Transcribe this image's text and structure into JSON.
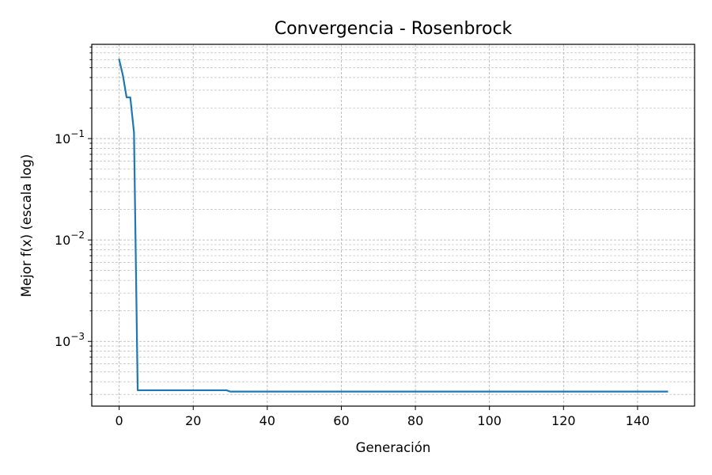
{
  "chart_data": {
    "type": "line",
    "title": "Convergencia - Rosenbrock",
    "xlabel": "Generación",
    "ylabel": "Mejor f(x) (escala log)",
    "yscale": "log",
    "grid": true,
    "grid_minor": true,
    "xlim": [
      -7.4,
      155.4
    ],
    "ylim": [
      0.00023,
      0.85
    ],
    "x_ticks": [
      0,
      20,
      40,
      60,
      80,
      100,
      120,
      140
    ],
    "y_ticks": [
      {
        "value": 0.1,
        "base": "10",
        "exp": "−1"
      },
      {
        "value": 0.01,
        "base": "10",
        "exp": "−2"
      },
      {
        "value": 0.001,
        "base": "10",
        "exp": "−3"
      }
    ],
    "colors": {
      "line": "#1f77b4",
      "grid": "#b0b0b0"
    },
    "series": [
      {
        "x": [
          0,
          1,
          2,
          3,
          4,
          5,
          10,
          20,
          29,
          30,
          50,
          80,
          100,
          120,
          140,
          148
        ],
        "y": [
          0.6,
          0.42,
          0.255,
          0.255,
          0.115,
          0.00033,
          0.00033,
          0.00033,
          0.00033,
          0.00032,
          0.00032,
          0.00032,
          0.00032,
          0.00032,
          0.00032,
          0.00032
        ]
      }
    ]
  }
}
